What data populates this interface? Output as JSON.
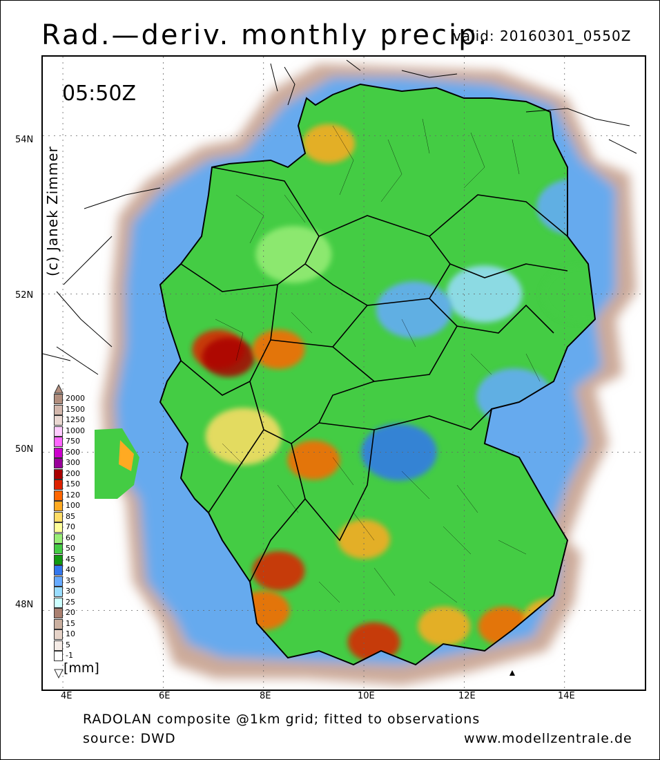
{
  "title": "Rad.—deriv. monthly precip.",
  "valid": "valid: 20160301_0550Z",
  "timestamp": "05:50Z",
  "copyright": "(c) Janek Zimmer",
  "lat_labels": [
    "54N",
    "52N",
    "50N",
    "48N"
  ],
  "lon_labels": [
    "4E",
    "6E",
    "8E",
    "10E",
    "12E",
    "14E"
  ],
  "footer": {
    "line1": "RADOLAN composite @1km grid; fitted to observations",
    "line2": "source: DWD",
    "website": "www.modellzentrale.de"
  },
  "legend": {
    "unit": "[mm]",
    "labels": [
      "2000",
      "1500",
      "1250",
      "1000",
      "750",
      "500",
      "300",
      "200",
      "150",
      "120",
      "100",
      "85",
      "70",
      "60",
      "50",
      "45",
      "40",
      "35",
      "30",
      "25",
      "20",
      "15",
      "10",
      "5",
      "-1"
    ],
    "colors": [
      "#b28e7e",
      "#d3b7ac",
      "#ead8d1",
      "#ffccff",
      "#ff66ff",
      "#cc00cc",
      "#990099",
      "#aa0000",
      "#dd2200",
      "#ff6600",
      "#ffaa22",
      "#ffdd66",
      "#ffff99",
      "#99ee77",
      "#44cc44",
      "#119911",
      "#3377ee",
      "#66aaff",
      "#99ddff",
      "#ccffff",
      "#aa8070",
      "#cbb0a0",
      "#e6d3c8",
      "#f4ebe6",
      "#ffffff"
    ]
  },
  "chart_data": {
    "type": "heatmap",
    "title": "Rad.—deriv. monthly precip.",
    "valid": "20160301_0550Z",
    "unit": "mm",
    "x_ticks": [
      "4E",
      "6E",
      "8E",
      "10E",
      "12E",
      "14E"
    ],
    "y_ticks": [
      "54N",
      "52N",
      "50N",
      "48N"
    ],
    "xlim_deg_E": [
      3.6,
      15.6
    ],
    "ylim_deg_N": [
      47.0,
      55.0
    ],
    "grid": true,
    "scale_levels": [
      -1,
      5,
      10,
      15,
      20,
      25,
      30,
      35,
      40,
      45,
      50,
      60,
      70,
      85,
      100,
      120,
      150,
      200,
      300,
      500,
      750,
      1000,
      1250,
      1500,
      2000
    ],
    "regions": [
      {
        "lon": 7.1,
        "lat": 51.3,
        "value": 150
      },
      {
        "lon": 7.3,
        "lat": 51.2,
        "value": 200
      },
      {
        "lon": 8.3,
        "lat": 51.3,
        "value": 120
      },
      {
        "lon": 8.3,
        "lat": 48.5,
        "value": 150
      },
      {
        "lon": 8.0,
        "lat": 48.0,
        "value": 120
      },
      {
        "lon": 10.2,
        "lat": 47.6,
        "value": 150
      },
      {
        "lon": 10.0,
        "lat": 48.9,
        "value": 100
      },
      {
        "lon": 11.6,
        "lat": 47.8,
        "value": 100
      },
      {
        "lon": 12.8,
        "lat": 47.8,
        "value": 120
      },
      {
        "lon": 13.7,
        "lat": 47.9,
        "value": 100
      },
      {
        "lon": 9.3,
        "lat": 53.9,
        "value": 100
      },
      {
        "lon": 12.4,
        "lat": 52.0,
        "value": 30
      },
      {
        "lon": 13.0,
        "lat": 50.7,
        "value": 35
      },
      {
        "lon": 14.2,
        "lat": 53.1,
        "value": 35
      },
      {
        "lon": 14.3,
        "lat": 52.0,
        "value": 50
      },
      {
        "lon": 11.0,
        "lat": 51.8,
        "value": 35
      },
      {
        "lon": 10.7,
        "lat": 50.0,
        "value": 40
      },
      {
        "lon": 9.0,
        "lat": 49.9,
        "value": 120
      },
      {
        "lon": 7.6,
        "lat": 50.2,
        "value": 85
      },
      {
        "lon": 8.6,
        "lat": 52.5,
        "value": 60
      }
    ]
  }
}
